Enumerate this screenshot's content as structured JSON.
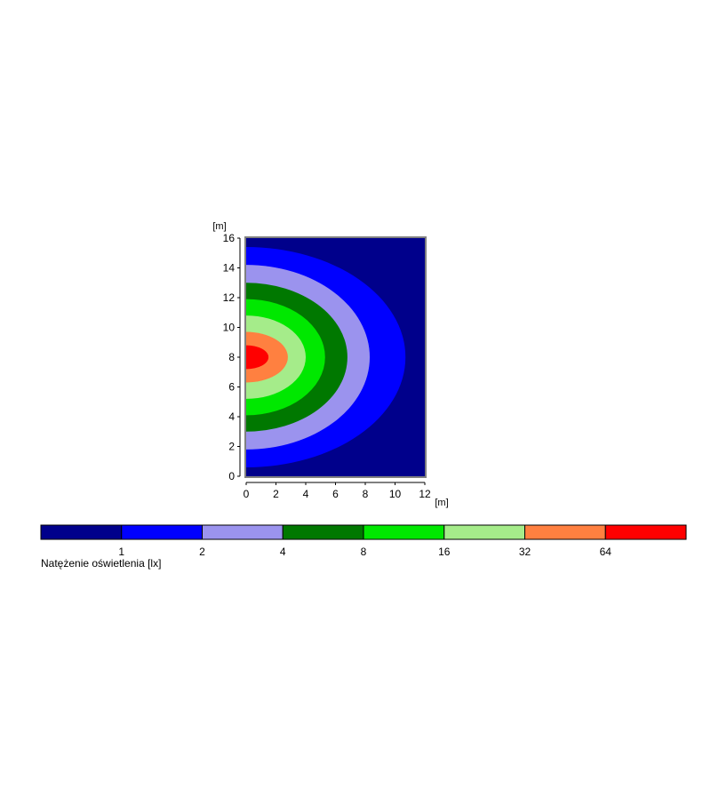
{
  "chart_data": {
    "type": "heatmap",
    "title": "",
    "xlabel": "[m]",
    "ylabel": "[m]",
    "xlim": [
      0,
      12
    ],
    "ylim": [
      0,
      16
    ],
    "x_ticks": [
      0,
      2,
      4,
      6,
      8,
      10,
      12
    ],
    "y_ticks": [
      0,
      2,
      4,
      6,
      8,
      10,
      12,
      14,
      16
    ],
    "grid": false,
    "source": {
      "x": 0.8,
      "y": 8
    },
    "contours": [
      {
        "level": 1,
        "color": "#0000ff",
        "x_max": 10.7,
        "y_min": 0.6,
        "y_max": 15.4
      },
      {
        "level": 2,
        "color": "#9b93ee",
        "x_max": 8.3,
        "y_min": 1.8,
        "y_max": 14.2
      },
      {
        "level": 4,
        "color": "#007800",
        "x_max": 6.8,
        "y_min": 3.0,
        "y_max": 13.0
      },
      {
        "level": 8,
        "color": "#00e800",
        "x_max": 5.3,
        "y_min": 4.1,
        "y_max": 11.9
      },
      {
        "level": 16,
        "color": "#a5ec8a",
        "x_max": 4.0,
        "y_min": 5.2,
        "y_max": 10.8
      },
      {
        "level": 32,
        "color": "#ff8040",
        "x_max": 2.8,
        "y_min": 6.3,
        "y_max": 9.7
      },
      {
        "level": 64,
        "color": "#ff0000",
        "x_max": 1.5,
        "y_min": 7.2,
        "y_max": 8.8
      }
    ],
    "background_color": "#00008b",
    "legend": {
      "title": "Natężenie oświetlenia [lx]",
      "position": "bottom",
      "colors": [
        "#00008b",
        "#0000ff",
        "#9b93ee",
        "#007800",
        "#00e800",
        "#a5ec8a",
        "#ff8040",
        "#ff0000"
      ],
      "tick_labels": [
        "1",
        "2",
        "4",
        "8",
        "16",
        "32",
        "64"
      ]
    }
  }
}
